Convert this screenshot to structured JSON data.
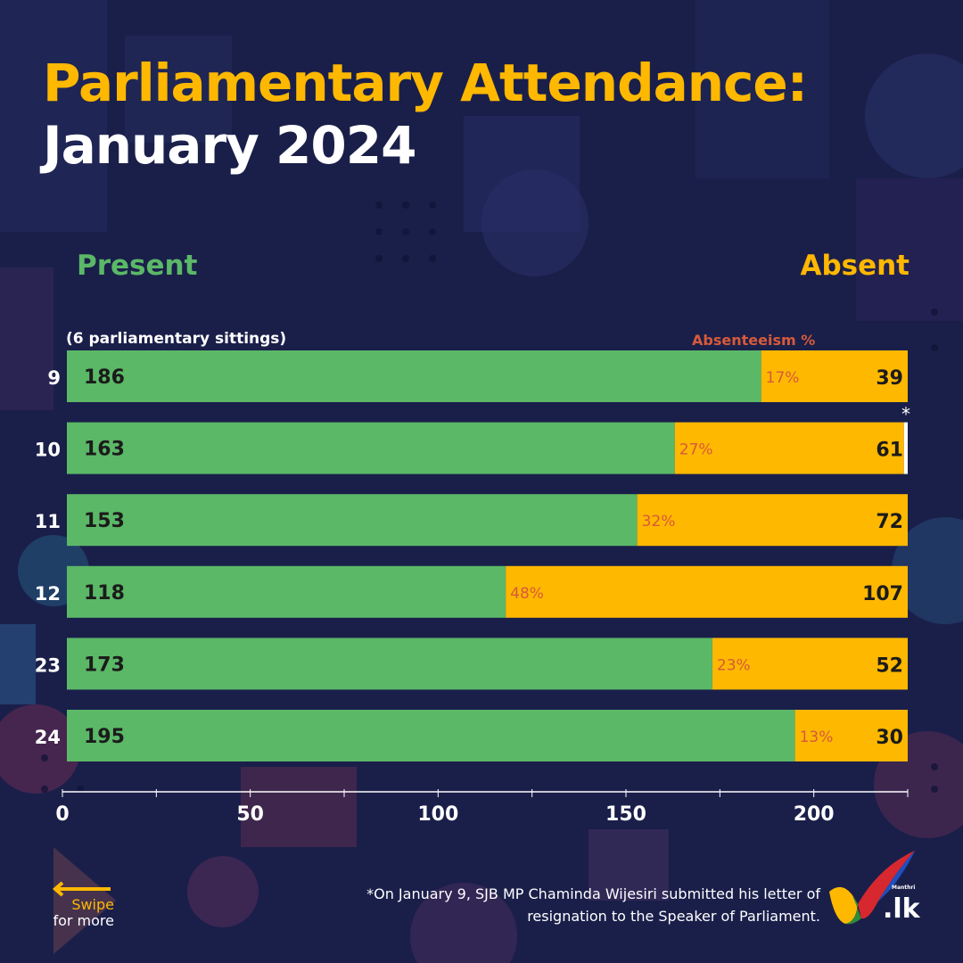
{
  "header": {
    "title_line1": "Parliamentary Attendance:",
    "title_line2": "January 2024"
  },
  "legend": {
    "present_label": "Present",
    "absent_label": "Absent",
    "sittings_note": "(6 parliamentary sittings)",
    "absenteeism_label": "Absenteeism %"
  },
  "colors": {
    "present": "#5bb867",
    "absent": "#ffb800",
    "absenteeism_text": "#d65a3a",
    "background": "#1a1f4a"
  },
  "chart_data": {
    "type": "bar",
    "orientation": "horizontal",
    "stacked": true,
    "categories": [
      "9",
      "10",
      "11",
      "12",
      "23",
      "24"
    ],
    "series": [
      {
        "name": "Present",
        "values": [
          186,
          163,
          153,
          118,
          173,
          195
        ]
      },
      {
        "name": "Absent",
        "values": [
          39,
          61,
          72,
          107,
          52,
          30
        ]
      }
    ],
    "absenteeism_pct": [
      "17%",
      "27%",
      "32%",
      "48%",
      "23%",
      "13%"
    ],
    "vacancy": [
      0,
      1,
      0,
      0,
      0,
      0
    ],
    "vacancy_marker": "*",
    "xlim": [
      0,
      225
    ],
    "xticks": [
      0,
      50,
      100,
      150,
      200
    ],
    "grid": false
  },
  "footer": {
    "swipe_line1": "Swipe",
    "swipe_line2": "for more",
    "footnote": "*On January 9, SJB MP Chaminda Wijesiri submitted his letter of resignation to the Speaker of Parliament.",
    "brand_small": "Manthri",
    "brand": ".lk"
  }
}
